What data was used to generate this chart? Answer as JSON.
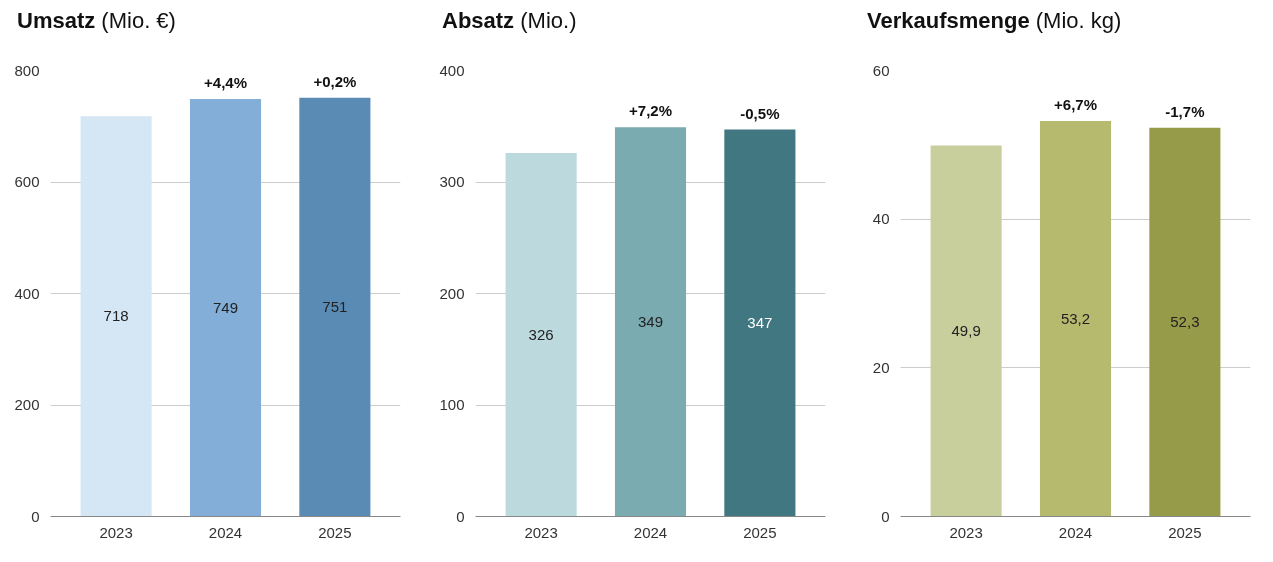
{
  "chart_data": [
    {
      "type": "bar",
      "title": "Umsatz",
      "subtitle": "(Mio. €)",
      "categories": [
        "2023",
        "2024",
        "2025"
      ],
      "values": [
        718,
        749,
        751
      ],
      "colors": [
        "#d5e6f5",
        "#82aed8",
        "#5a8bb5"
      ],
      "value_labels": [
        "718",
        "749",
        "751"
      ],
      "ylim": [
        0,
        800
      ],
      "yticks": [
        0,
        200,
        400,
        600,
        800
      ],
      "grid": "y",
      "annotations": [
        {
          "text": "+4,4%",
          "x": "2024",
          "y": 749
        },
        {
          "text": "+0,2%",
          "x": "2025",
          "y": 751
        }
      ]
    },
    {
      "type": "bar",
      "title": "Absatz",
      "subtitle": "(Mio.)",
      "categories": [
        "2023",
        "2024",
        "2025"
      ],
      "values": [
        326,
        349,
        347
      ],
      "colors": [
        "#bcdade",
        "#7aabb0",
        "#417780"
      ],
      "value_labels": [
        "326",
        "349",
        "347"
      ],
      "ylim": [
        0,
        400
      ],
      "yticks": [
        0,
        100,
        200,
        300,
        400
      ],
      "grid": "y",
      "annotations": [
        {
          "text": "+7,2%",
          "x": "2024",
          "y": 349
        },
        {
          "text": "-0,5%",
          "x": "2025",
          "y": 347
        }
      ]
    },
    {
      "type": "bar",
      "title": "Verkaufsmenge",
      "subtitle": "(Mio. kg)",
      "categories": [
        "2023",
        "2024",
        "2025"
      ],
      "values": [
        49.9,
        53.2,
        52.3
      ],
      "colors": [
        "#c8cf9c",
        "#b6ba6e",
        "#969b4a"
      ],
      "value_labels": [
        "49,9",
        "53,2",
        "52,3"
      ],
      "ylim": [
        0,
        60
      ],
      "yticks": [
        0,
        20,
        40,
        60
      ],
      "grid": "y",
      "annotations": [
        {
          "text": "+6,7%",
          "x": "2024",
          "y": 53.2
        },
        {
          "text": "-1,7%",
          "x": "2025",
          "y": 52.3
        }
      ]
    }
  ]
}
